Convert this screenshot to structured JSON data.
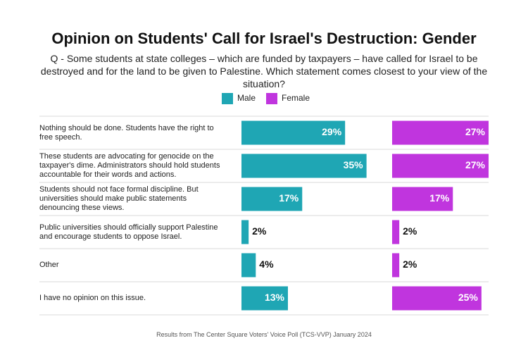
{
  "chart_data": {
    "type": "bar",
    "orientation": "horizontal",
    "title": "Opinion on Students' Call for Israel's Destruction: Gender",
    "subtitle": "Q - Some students at state colleges – which are funded by taxpayers – have called for Israel to be destroyed and for the land to be given to Palestine. Which statement comes closest to your view of the situation?",
    "source": "Results from The Center Square Voters' Voice Poll (TCS-VVP) January 2024",
    "categories": [
      "Nothing should be done. Students have the right to free speech.",
      "These students are advocating for genocide on the taxpayer's dime. Administrators should hold students accountable for their words and actions.",
      "Students should not face formal discipline. But universities should make public statements denouncing these views.",
      "Public universities should officially support Palestine and encourage students to oppose Israel.",
      "Other",
      "I have no opinion on this issue."
    ],
    "xlim": [
      0,
      40
    ],
    "series": [
      {
        "name": "Male",
        "color": "#1fa6b4",
        "values": [
          29,
          35,
          17,
          2,
          4,
          13
        ],
        "value_labels": [
          "29%",
          "35%",
          "17%",
          "2%",
          "4%",
          "13%"
        ]
      },
      {
        "name": "Female",
        "color": "#c035de",
        "values": [
          27,
          27,
          17,
          2,
          2,
          25
        ],
        "value_labels": [
          "27%",
          "27%",
          "17%",
          "2%",
          "2%",
          "25%"
        ]
      }
    ]
  }
}
